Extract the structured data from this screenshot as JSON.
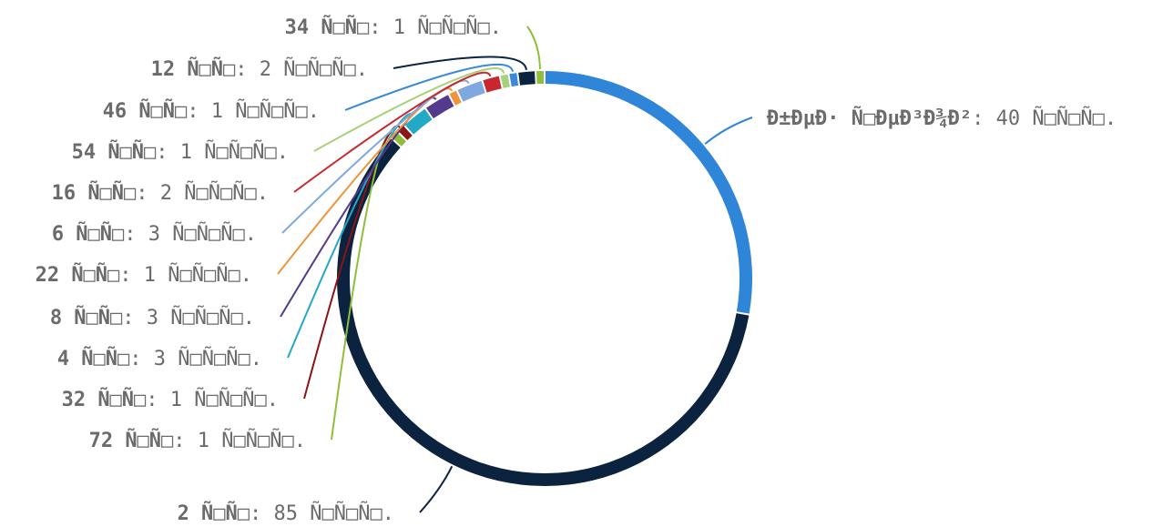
{
  "chart_data": {
    "type": "pie",
    "variant": "donut",
    "legend_placement": "none",
    "slices": [
      {
        "name": "Đ±ĐµĐ· Ñ□ĐµĐ³Đ¾Đ²",
        "value": 40,
        "text": "Đ±ĐµĐ· Ñ□ĐµĐ³Đ¾Đ²: 40 Ñ□Ñ□Ñ□.",
        "bold": "Đ±ĐµĐ· Ñ□ĐµĐ³Đ¾Đ²",
        "rest": ": 40 Ñ□Ñ□Ñ□.",
        "color": "#2f86d9"
      },
      {
        "name": "2 Ñ□Ñ□",
        "value": 85,
        "text": "2 Ñ□Ñ□: 85 Ñ□Ñ□Ñ□.",
        "bold": "2 Ñ□Ñ□",
        "rest": ": 85 Ñ□Ñ□Ñ□.",
        "color": "#0c2340"
      },
      {
        "name": "72 Ñ□Ñ□",
        "value": 1,
        "text": "72 Ñ□Ñ□: 1 Ñ□Ñ□Ñ□.",
        "bold": "72 Ñ□Ñ□",
        "rest": ": 1 Ñ□Ñ□Ñ□.",
        "color": "#8fbf3a"
      },
      {
        "name": "32 Ñ□Ñ□",
        "value": 1,
        "text": "32 Ñ□Ñ□: 1 Ñ□Ñ□Ñ□.",
        "bold": "32 Ñ□Ñ□",
        "rest": ": 1 Ñ□Ñ□Ñ□.",
        "color": "#8b1414"
      },
      {
        "name": "4 Ñ□Ñ□",
        "value": 3,
        "text": "4 Ñ□Ñ□: 3 Ñ□Ñ□Ñ□.",
        "bold": "4 Ñ□Ñ□",
        "rest": ": 3 Ñ□Ñ□Ñ□.",
        "color": "#23a8c8"
      },
      {
        "name": "8 Ñ□Ñ□",
        "value": 3,
        "text": "8 Ñ□Ñ□: 3 Ñ□Ñ□Ñ□.",
        "bold": "8 Ñ□Ñ□",
        "rest": ": 3 Ñ□Ñ□Ñ□.",
        "color": "#533a8c"
      },
      {
        "name": "22 Ñ□Ñ□",
        "value": 1,
        "text": "22 Ñ□Ñ□: 1 Ñ□Ñ□Ñ□.",
        "bold": "22 Ñ□Ñ□",
        "rest": ": 1 Ñ□Ñ□Ñ□.",
        "color": "#f0943a"
      },
      {
        "name": "6 Ñ□Ñ□",
        "value": 3,
        "text": "6 Ñ□Ñ□: 3 Ñ□Ñ□Ñ□.",
        "bold": "6 Ñ□Ñ□",
        "rest": ": 3 Ñ□Ñ□Ñ□.",
        "color": "#7fa8e0"
      },
      {
        "name": "16 Ñ□Ñ□",
        "value": 2,
        "text": "16 Ñ□Ñ□: 2 Ñ□Ñ□Ñ□.",
        "bold": "16 Ñ□Ñ□",
        "rest": ": 2 Ñ□Ñ□Ñ□.",
        "color": "#c8282d"
      },
      {
        "name": "54 Ñ□Ñ□",
        "value": 1,
        "text": "54 Ñ□Ñ□: 1 Ñ□Ñ□Ñ□.",
        "bold": "54 Ñ□Ñ□",
        "rest": ": 1 Ñ□Ñ□Ñ□.",
        "color": "#a8d07a"
      },
      {
        "name": "46 Ñ□Ñ□",
        "value": 1,
        "text": "46 Ñ□Ñ□: 1 Ñ□Ñ□Ñ□.",
        "bold": "46 Ñ□Ñ□",
        "rest": ": 1 Ñ□Ñ□Ñ□.",
        "color": "#3a8ad9"
      },
      {
        "name": "12 Ñ□Ñ□",
        "value": 2,
        "text": "12 Ñ□Ñ□: 2 Ñ□Ñ□Ñ□.",
        "bold": "12 Ñ□Ñ□",
        "rest": ": 2 Ñ□Ñ□Ñ□.",
        "color": "#0c2340"
      },
      {
        "name": "34 Ñ□Ñ□",
        "value": 1,
        "text": "34 Ñ□Ñ□: 1 Ñ□Ñ□Ñ□.",
        "bold": "34 Ñ□Ñ□",
        "rest": ": 1 Ñ□Ñ□Ñ□.",
        "color": "#8fbf3a"
      }
    ]
  }
}
